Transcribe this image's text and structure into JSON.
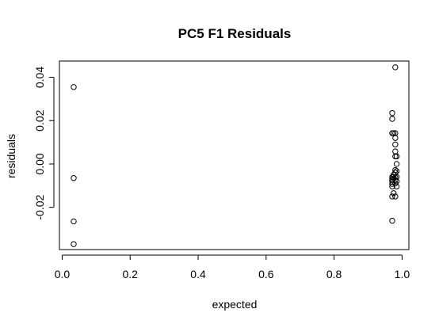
{
  "chart_data": {
    "type": "scatter",
    "title": "PC5 F1 Residuals",
    "xlabel": "expected",
    "ylabel": "residuals",
    "xlim": [
      -0.008,
      1.02
    ],
    "ylim": [
      -0.0395,
      0.0475
    ],
    "x_ticks": [
      0.0,
      0.2,
      0.4,
      0.6,
      0.8,
      1.0
    ],
    "x_tick_labels": [
      "0.0",
      "0.2",
      "0.4",
      "0.6",
      "0.8",
      "1.0"
    ],
    "y_ticks": [
      -0.02,
      0.0,
      0.02,
      0.04
    ],
    "y_tick_labels": [
      "-0.02",
      "0.00",
      "0.02",
      "0.04"
    ],
    "grid": false,
    "marker": "open-circle",
    "series": [
      {
        "x": [
          0.034,
          0.034,
          0.034,
          0.034,
          0.971,
          0.971,
          0.971,
          0.971,
          0.971,
          0.971,
          0.971,
          0.971,
          0.971,
          0.971,
          0.971,
          0.975,
          0.975,
          0.975,
          0.975,
          0.98,
          0.98,
          0.98,
          0.98,
          0.98,
          0.98,
          0.98,
          0.98,
          0.98,
          0.98,
          0.98,
          0.98,
          0.984,
          0.984,
          0.984,
          0.984,
          0.984,
          0.984
        ],
        "y": [
          0.0355,
          -0.0065,
          -0.0265,
          -0.037,
          0.0235,
          0.0208,
          0.0142,
          -0.006,
          -0.0068,
          -0.0076,
          -0.0083,
          -0.0092,
          -0.0104,
          -0.015,
          -0.0262,
          0.0142,
          -0.005,
          -0.006,
          -0.0135,
          0.0446,
          0.0142,
          0.012,
          0.009,
          0.0058,
          0.0035,
          -0.0028,
          -0.004,
          -0.0062,
          -0.0075,
          -0.009,
          -0.015,
          0.0035,
          0.0,
          -0.0033,
          -0.006,
          -0.008,
          -0.0104
        ]
      }
    ]
  }
}
